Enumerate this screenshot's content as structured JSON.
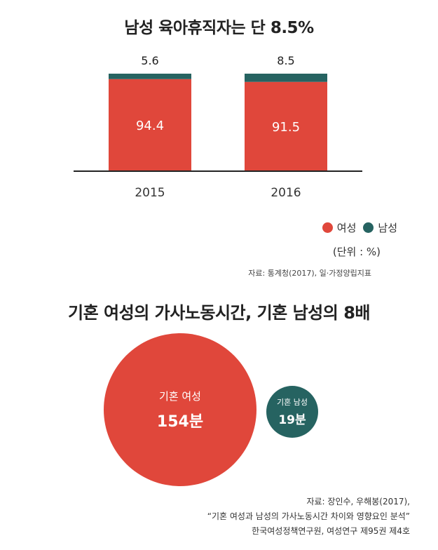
{
  "title1": "남성 육아휴직자는 단 8.5%",
  "chart_data": [
    {
      "type": "bar",
      "stacked": true,
      "categories": [
        "2015",
        "2016"
      ],
      "series": [
        {
          "name": "여성",
          "values": [
            94.4,
            91.5
          ],
          "color": "#e0473b"
        },
        {
          "name": "남성",
          "values": [
            5.6,
            8.5
          ],
          "color": "#266361"
        }
      ],
      "ylim": [
        0,
        100
      ],
      "grid": false,
      "legend": "bottom-right",
      "unit_note": "(단위 : %)"
    },
    {
      "type": "bubble",
      "items": [
        {
          "label": "기혼 여성",
          "value": 154,
          "display": "154분",
          "color": "#e0473b"
        },
        {
          "label": "기혼 남성",
          "value": 19,
          "display": "19분",
          "color": "#266361"
        }
      ]
    }
  ],
  "legend": {
    "female": "여성",
    "male": "남성"
  },
  "unit": "(단위 : %)",
  "source1": "자료: 통계청(2017), 일·가정양립지표",
  "title2": "기혼 여성의 가사노동시간, 기혼 남성의 8배",
  "circle_female": {
    "label": "기혼 여성",
    "value": "154분"
  },
  "circle_male": {
    "label": "기혼 남성",
    "value": "19분"
  },
  "source2": [
    "자료: 장인수, 우해봉(2017),",
    "“기혼 여성과 남성의 가사노동시간 차이와 영향요인 분석”",
    "한국여성정책연구원, 여성연구 제95권 제4호"
  ]
}
